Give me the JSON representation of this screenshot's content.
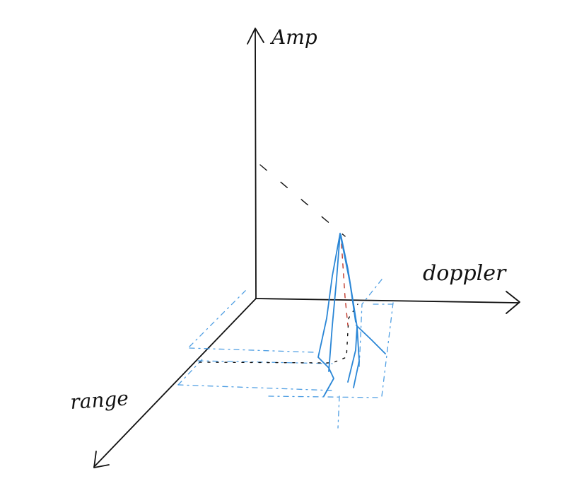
{
  "axes": {
    "vertical_label": "Amp",
    "horizontal_label": "doppler",
    "depth_label": "range"
  },
  "colors": {
    "ink": "#111111",
    "peak": "#2a86d6",
    "floor": "#3d95e0",
    "center": "#c0392b"
  }
}
